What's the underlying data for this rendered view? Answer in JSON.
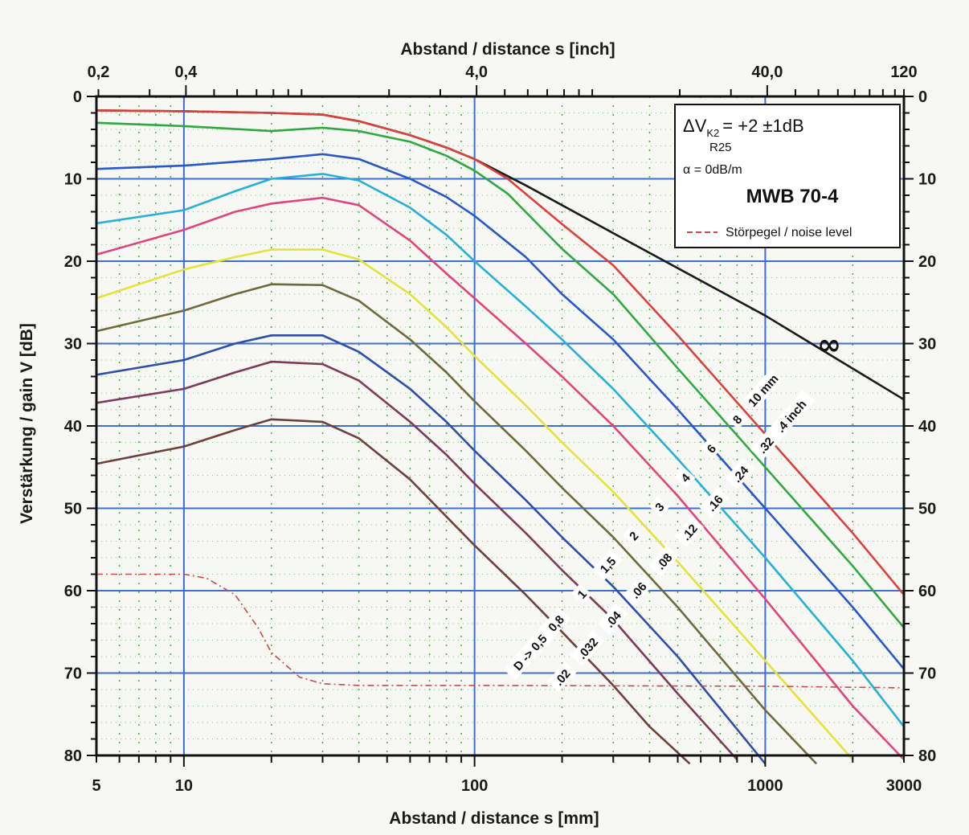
{
  "chart_data": {
    "type": "line",
    "x_axis_bottom": {
      "label": "Abstand / distance s [mm]",
      "scale": "log",
      "range": [
        5,
        3000
      ],
      "tick_labels": [
        {
          "value": 5,
          "label": "5"
        },
        {
          "value": 10,
          "label": "10"
        },
        {
          "value": 100,
          "label": "100"
        },
        {
          "value": 1000,
          "label": "1000"
        },
        {
          "value": 3000,
          "label": "3000"
        }
      ]
    },
    "x_axis_top": {
      "label": "Abstand / distance s [inch]",
      "tick_labels": [
        {
          "value_mm": 5.08,
          "label": "0,2"
        },
        {
          "value_mm": 10.16,
          "label": "0,4"
        },
        {
          "value_mm": 101.6,
          "label": "4,0"
        },
        {
          "value_mm": 1016,
          "label": "40,0"
        },
        {
          "value_mm": 3048,
          "label": "120"
        }
      ]
    },
    "y_axis": {
      "label": "Verstärkung / gain V [dB]",
      "range": [
        0,
        80
      ],
      "inverted": true,
      "ticks_left": [
        "0",
        "10",
        "20",
        "30",
        "40",
        "50",
        "60",
        "70",
        "80"
      ],
      "ticks_right": [
        "0",
        "10",
        "20",
        "30",
        "40",
        "50",
        "60",
        "70",
        "80"
      ],
      "tick_values": [
        0,
        10,
        20,
        30,
        40,
        50,
        60,
        70,
        80
      ]
    },
    "legend": {
      "placement": "top-right",
      "dvk_main": "ΔV",
      "dvk_sub": "K2",
      "dvk_value": "= +2 ±1dB",
      "dvk_sub2": "R25",
      "alpha": "α = 0dB/m",
      "probe": "MWB 70-4",
      "noise": "Störpegel / noise level"
    },
    "infinity_label": "∞",
    "d_labels_mm": [
      "D -> 0,5",
      "0,8",
      "1",
      "1,5",
      "2",
      "3",
      "4",
      "6",
      "8",
      "10 mm"
    ],
    "d_labels_inch": [
      ".02",
      ".032",
      ".04",
      ".06",
      ".08",
      ".12",
      ".16",
      ".24",
      ".32",
      ".4 inch"
    ],
    "series": [
      {
        "name": "∞",
        "color": "#1a1a1a",
        "points": [
          [
            5,
            1.7
          ],
          [
            10,
            1.8
          ],
          [
            20,
            2.0
          ],
          [
            30,
            2.2
          ],
          [
            40,
            3.0
          ],
          [
            60,
            4.7
          ],
          [
            80,
            6.2
          ],
          [
            100,
            7.6
          ],
          [
            150,
            10.8
          ],
          [
            300,
            16.6
          ],
          [
            1000,
            26.6
          ],
          [
            3000,
            36.8
          ]
        ]
      },
      {
        "name": "10 mm",
        "color": "#d9413b",
        "points": [
          [
            5,
            1.7
          ],
          [
            10,
            1.8
          ],
          [
            20,
            2.0
          ],
          [
            30,
            2.2
          ],
          [
            40,
            3.0
          ],
          [
            60,
            4.7
          ],
          [
            80,
            6.2
          ],
          [
            100,
            7.6
          ],
          [
            130,
            10.0
          ],
          [
            200,
            15.5
          ],
          [
            300,
            20.5
          ],
          [
            500,
            29.0
          ],
          [
            1000,
            41.0
          ],
          [
            2000,
            53.0
          ],
          [
            3000,
            60.5
          ]
        ]
      },
      {
        "name": "8",
        "color": "#2fa840",
        "points": [
          [
            5,
            3.2
          ],
          [
            10,
            3.6
          ],
          [
            20,
            4.2
          ],
          [
            30,
            3.8
          ],
          [
            40,
            4.2
          ],
          [
            60,
            5.5
          ],
          [
            80,
            7.2
          ],
          [
            100,
            9.0
          ],
          [
            130,
            11.8
          ],
          [
            200,
            18.5
          ],
          [
            300,
            24.0
          ],
          [
            500,
            33.0
          ],
          [
            1000,
            45.0
          ],
          [
            2000,
            57.0
          ],
          [
            3000,
            64.5
          ]
        ]
      },
      {
        "name": "6",
        "color": "#2858c8",
        "points": [
          [
            5,
            8.8
          ],
          [
            10,
            8.4
          ],
          [
            20,
            7.6
          ],
          [
            30,
            7.0
          ],
          [
            40,
            7.6
          ],
          [
            60,
            10.0
          ],
          [
            80,
            12.2
          ],
          [
            100,
            14.5
          ],
          [
            150,
            19.5
          ],
          [
            200,
            24.0
          ],
          [
            300,
            29.5
          ],
          [
            500,
            38.0
          ],
          [
            1000,
            50.0
          ],
          [
            2000,
            62.0
          ],
          [
            3000,
            69.5
          ]
        ]
      },
      {
        "name": "4",
        "color": "#27b0d6",
        "points": [
          [
            5,
            15.4
          ],
          [
            10,
            13.8
          ],
          [
            15,
            11.5
          ],
          [
            20,
            10.0
          ],
          [
            30,
            9.4
          ],
          [
            40,
            10.2
          ],
          [
            60,
            13.5
          ],
          [
            80,
            16.8
          ],
          [
            100,
            20.0
          ],
          [
            150,
            25.5
          ],
          [
            200,
            29.5
          ],
          [
            300,
            35.5
          ],
          [
            500,
            44.0
          ],
          [
            1000,
            56.0
          ],
          [
            2000,
            68.5
          ],
          [
            3000,
            76.5
          ]
        ]
      },
      {
        "name": "3",
        "color": "#e0447f",
        "points": [
          [
            5,
            19.2
          ],
          [
            10,
            16.2
          ],
          [
            15,
            14.0
          ],
          [
            20,
            13.0
          ],
          [
            30,
            12.3
          ],
          [
            40,
            13.2
          ],
          [
            60,
            17.5
          ],
          [
            80,
            21.5
          ],
          [
            100,
            24.5
          ],
          [
            150,
            30.0
          ],
          [
            200,
            34.0
          ],
          [
            300,
            40.0
          ],
          [
            500,
            48.5
          ],
          [
            1000,
            61.0
          ],
          [
            2000,
            74.0
          ],
          [
            3000,
            80.5
          ]
        ]
      },
      {
        "name": "2",
        "color": "#e3e33a",
        "points": [
          [
            5,
            24.5
          ],
          [
            10,
            21.0
          ],
          [
            15,
            19.5
          ],
          [
            20,
            18.6
          ],
          [
            30,
            18.6
          ],
          [
            40,
            19.8
          ],
          [
            60,
            24.0
          ],
          [
            80,
            28.0
          ],
          [
            100,
            31.5
          ],
          [
            150,
            37.5
          ],
          [
            200,
            42.0
          ],
          [
            300,
            48.0
          ],
          [
            500,
            56.5
          ],
          [
            1000,
            68.5
          ],
          [
            2000,
            80.5
          ]
        ]
      },
      {
        "name": "1,5",
        "color": "#6e6a3a",
        "points": [
          [
            5,
            28.5
          ],
          [
            10,
            26.0
          ],
          [
            15,
            24.0
          ],
          [
            20,
            22.8
          ],
          [
            30,
            22.9
          ],
          [
            40,
            24.8
          ],
          [
            60,
            29.5
          ],
          [
            80,
            33.5
          ],
          [
            100,
            37.0
          ],
          [
            150,
            43.0
          ],
          [
            200,
            47.5
          ],
          [
            300,
            53.5
          ],
          [
            500,
            62.0
          ],
          [
            1000,
            74.5
          ],
          [
            1500,
            81.0
          ]
        ]
      },
      {
        "name": "1",
        "color": "#2d4fa8",
        "points": [
          [
            5,
            33.8
          ],
          [
            10,
            32.0
          ],
          [
            15,
            30.0
          ],
          [
            20,
            29.0
          ],
          [
            30,
            29.0
          ],
          [
            40,
            31.0
          ],
          [
            60,
            35.5
          ],
          [
            80,
            39.5
          ],
          [
            100,
            43.0
          ],
          [
            150,
            49.0
          ],
          [
            200,
            53.5
          ],
          [
            300,
            59.5
          ],
          [
            500,
            68.0
          ],
          [
            1000,
            81.0
          ]
        ]
      },
      {
        "name": "0,8",
        "color": "#7e3a5a",
        "points": [
          [
            5,
            37.2
          ],
          [
            10,
            35.5
          ],
          [
            15,
            33.5
          ],
          [
            20,
            32.2
          ],
          [
            30,
            32.5
          ],
          [
            40,
            34.5
          ],
          [
            60,
            39.5
          ],
          [
            80,
            43.5
          ],
          [
            100,
            47.0
          ],
          [
            150,
            53.0
          ],
          [
            200,
            57.5
          ],
          [
            300,
            63.5
          ],
          [
            500,
            72.5
          ],
          [
            800,
            80.5
          ]
        ]
      },
      {
        "name": "D -> 0,5",
        "color": "#6e3f3c",
        "points": [
          [
            5,
            44.6
          ],
          [
            10,
            42.5
          ],
          [
            15,
            40.5
          ],
          [
            20,
            39.2
          ],
          [
            30,
            39.5
          ],
          [
            40,
            41.5
          ],
          [
            60,
            46.5
          ],
          [
            80,
            51.0
          ],
          [
            100,
            54.5
          ],
          [
            150,
            60.5
          ],
          [
            200,
            65.0
          ],
          [
            300,
            71.5
          ],
          [
            400,
            76.5
          ],
          [
            550,
            81.0
          ]
        ]
      },
      {
        "name": "Störpegel / noise level",
        "color": "#c84a4a",
        "dashed": true,
        "points": [
          [
            5,
            58.0
          ],
          [
            10,
            58.0
          ],
          [
            12,
            58.5
          ],
          [
            15,
            60.5
          ],
          [
            18,
            64.5
          ],
          [
            20,
            67.5
          ],
          [
            25,
            70.5
          ],
          [
            30,
            71.3
          ],
          [
            40,
            71.5
          ],
          [
            100,
            71.5
          ],
          [
            1000,
            71.6
          ],
          [
            3000,
            71.8
          ]
        ]
      }
    ]
  }
}
